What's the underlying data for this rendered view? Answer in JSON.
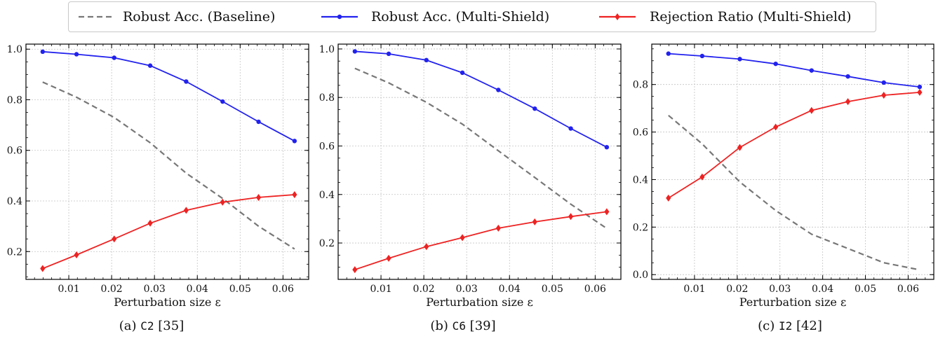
{
  "legend": {
    "baseline_label": "Robust Acc. (Baseline)",
    "multishield_acc_label": "Robust Acc. (Multi-Shield)",
    "rejection_label": "Rejection Ratio (Multi-Shield)"
  },
  "colors": {
    "baseline": "#777777",
    "multishield_acc": "#2222ee",
    "rejection": "#ee2222"
  },
  "captions": [
    {
      "prefix": "(a) ",
      "code": "C2",
      "ref": " [35]"
    },
    {
      "prefix": "(b) ",
      "code": "C6",
      "ref": " [39]"
    },
    {
      "prefix": "(c) ",
      "code": "I2",
      "ref": " [42]"
    }
  ],
  "chart_data": [
    {
      "type": "line",
      "xlabel": "Perturbation size ε",
      "ylabel": "",
      "xlim": [
        0.0,
        0.066
      ],
      "ylim": [
        0.09,
        1.02
      ],
      "xticks": [
        "0.01",
        "0.02",
        "0.03",
        "0.04",
        "0.05",
        "0.06"
      ],
      "yticks": [
        "0.2",
        "0.4",
        "0.6",
        "0.8",
        "1.0"
      ],
      "grid": true,
      "x": [
        0.0039,
        0.0118,
        0.0206,
        0.029,
        0.0374,
        0.0459,
        0.0543,
        0.0627
      ],
      "series": [
        {
          "name": "Robust Acc. (Baseline)",
          "style": "dashed",
          "values": [
            0.87,
            0.81,
            0.73,
            0.63,
            0.51,
            0.41,
            0.3,
            0.21
          ]
        },
        {
          "name": "Robust Acc. (Multi-Shield)",
          "style": "solid-dot",
          "values": [
            0.99,
            0.98,
            0.966,
            0.935,
            0.872,
            0.793,
            0.713,
            0.637
          ]
        },
        {
          "name": "Rejection Ratio (Multi-Shield)",
          "style": "solid-diamond",
          "values": [
            0.133,
            0.187,
            0.25,
            0.312,
            0.363,
            0.395,
            0.414,
            0.425
          ]
        }
      ]
    },
    {
      "type": "line",
      "xlabel": "Perturbation size ε",
      "ylabel": "",
      "xlim": [
        0.0,
        0.066
      ],
      "ylim": [
        0.05,
        1.02
      ],
      "xticks": [
        "0.01",
        "0.02",
        "0.03",
        "0.04",
        "0.05",
        "0.06"
      ],
      "yticks": [
        "0.2",
        "0.4",
        "0.6",
        "0.8",
        "1.0"
      ],
      "grid": true,
      "x": [
        0.0039,
        0.0118,
        0.0206,
        0.029,
        0.0374,
        0.0459,
        0.0543,
        0.0627
      ],
      "series": [
        {
          "name": "Robust Acc. (Baseline)",
          "style": "dashed",
          "values": [
            0.92,
            0.86,
            0.78,
            0.69,
            0.58,
            0.47,
            0.36,
            0.26
          ]
        },
        {
          "name": "Robust Acc. (Multi-Shield)",
          "style": "solid-dot",
          "values": [
            0.99,
            0.98,
            0.954,
            0.902,
            0.831,
            0.754,
            0.672,
            0.595
          ]
        },
        {
          "name": "Rejection Ratio (Multi-Shield)",
          "style": "solid-diamond",
          "values": [
            0.09,
            0.137,
            0.185,
            0.222,
            0.261,
            0.287,
            0.309,
            0.329
          ]
        }
      ]
    },
    {
      "type": "line",
      "xlabel": "Perturbation size ε",
      "ylabel": "",
      "xlim": [
        0.0,
        0.066
      ],
      "ylim": [
        -0.02,
        0.97
      ],
      "xticks": [
        "0.01",
        "0.02",
        "0.03",
        "0.04",
        "0.05",
        "0.06"
      ],
      "yticks": [
        "0.0",
        "0.2",
        "0.4",
        "0.6",
        "0.8"
      ],
      "grid": true,
      "x": [
        0.0039,
        0.0118,
        0.0206,
        0.029,
        0.0374,
        0.0459,
        0.0543,
        0.0627
      ],
      "series": [
        {
          "name": "Robust Acc. (Baseline)",
          "style": "dashed",
          "values": [
            0.67,
            0.55,
            0.39,
            0.27,
            0.17,
            0.11,
            0.05,
            0.02
          ]
        },
        {
          "name": "Robust Acc. (Multi-Shield)",
          "style": "solid-dot",
          "values": [
            0.93,
            0.92,
            0.907,
            0.887,
            0.859,
            0.834,
            0.808,
            0.79
          ]
        },
        {
          "name": "Rejection Ratio (Multi-Shield)",
          "style": "solid-diamond",
          "values": [
            0.322,
            0.411,
            0.535,
            0.621,
            0.691,
            0.728,
            0.755,
            0.767
          ]
        }
      ]
    }
  ]
}
